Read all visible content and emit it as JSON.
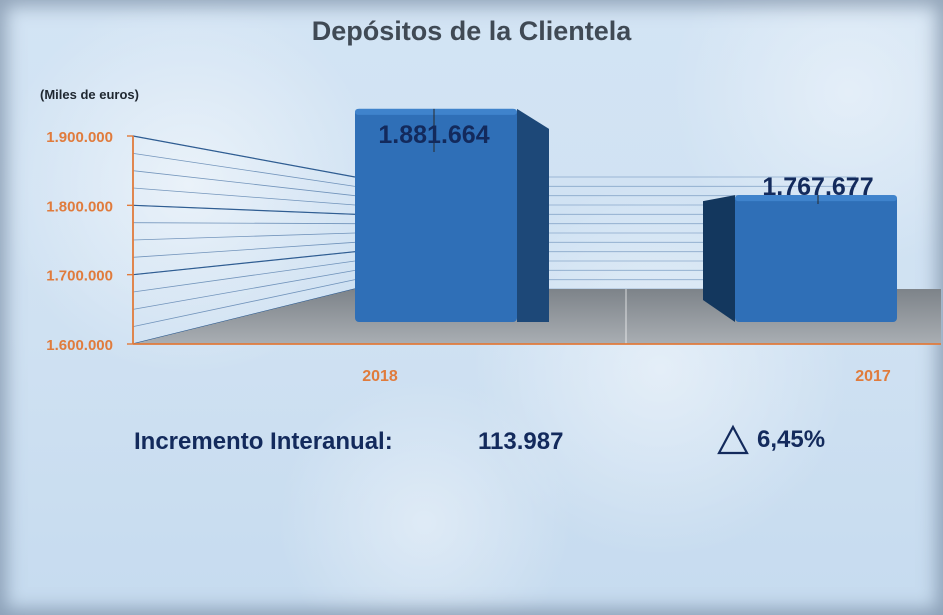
{
  "chart_data": {
    "type": "bar",
    "title": "Depósitos de la Clientela",
    "unit_label": "(Miles de euros)",
    "categories": [
      "2018",
      "2017"
    ],
    "values": [
      1881664,
      1767677
    ],
    "value_labels": [
      "1.881.664",
      "1.767.677"
    ],
    "ylim": [
      1600000,
      1900000
    ],
    "yticks": [
      1600000,
      1700000,
      1800000,
      1900000
    ],
    "ytick_labels": [
      "1.600.000",
      "1.700.000",
      "1.800.000",
      "1.900.000"
    ],
    "grid": true,
    "colors": {
      "bar_front": "#2f6fb7",
      "bar_side": "#1d4878",
      "bar_top": "#3f83cc",
      "axis": "#e07b3c",
      "tick_label": "#e07b3c",
      "value_label": "#132a5c"
    }
  },
  "summary": {
    "label": "Incremento Interanual:",
    "value": "113.987",
    "percent": "6,45%",
    "icon": "triangle-up-outline-icon"
  }
}
